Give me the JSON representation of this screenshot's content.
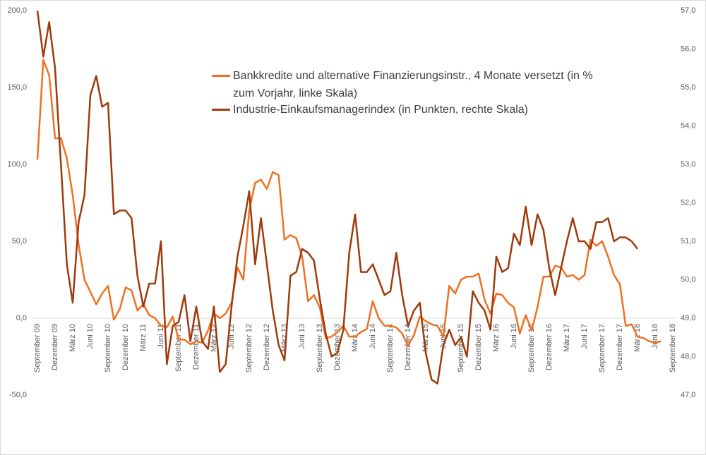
{
  "chart_data": {
    "type": "line",
    "categories": [
      "September 09",
      null,
      null,
      "Dezember 09",
      null,
      null,
      "März 10",
      null,
      null,
      "Juni 10",
      null,
      null,
      "September 10",
      null,
      null,
      "Dezember 10",
      null,
      null,
      "März 11",
      null,
      null,
      "Juni 11",
      null,
      null,
      "September 11",
      null,
      null,
      "Dezember 11",
      null,
      null,
      "März 12",
      null,
      null,
      "Juni 12",
      null,
      null,
      "September 12",
      null,
      null,
      "Dezember 12",
      null,
      null,
      "März 13",
      null,
      null,
      "Juni 13",
      null,
      null,
      "September 13",
      null,
      null,
      "Dezember 13",
      null,
      null,
      "März 14",
      null,
      null,
      "Juni 14",
      null,
      null,
      "September 14",
      null,
      null,
      "Dezember 14",
      null,
      null,
      "März 15",
      null,
      null,
      "Juni 15",
      null,
      null,
      "September 15",
      null,
      null,
      "Dezember 15",
      null,
      null,
      "März 16",
      null,
      null,
      "Juni 16",
      null,
      null,
      "September 16",
      null,
      null,
      "Dezember 16",
      null,
      null,
      "März 17",
      null,
      null,
      "Juni 17",
      null,
      null,
      "September 17",
      null,
      null,
      "Dezember 17",
      null,
      null,
      "März 18",
      null,
      null,
      "Juni 18",
      null,
      null,
      "September 18"
    ],
    "series": [
      {
        "name": "Bankkredite und alternative Finanzierungsinstr., 4 Monate versetzt (in % zum Vorjahr, linke Skala)",
        "color": "#f07022",
        "values": [
          103,
          168,
          158,
          117,
          117,
          104,
          80,
          48,
          25,
          17,
          9,
          16,
          21,
          -1,
          6,
          20,
          18,
          5,
          9,
          2,
          0,
          -5,
          -6,
          1,
          -14,
          -14,
          -17,
          -15,
          -16,
          -8,
          3,
          0,
          3,
          10,
          33,
          25,
          70,
          88,
          90,
          84,
          95,
          93,
          51,
          54,
          52,
          40,
          11,
          15,
          7,
          -13,
          -12,
          -9,
          -5,
          -12,
          -12,
          -9,
          -7,
          11,
          0,
          -5,
          -5,
          -6,
          -10,
          -18,
          -11,
          1,
          -2,
          -4,
          -5,
          -12,
          21,
          16,
          25,
          27,
          27,
          29,
          12,
          3,
          16,
          15,
          10,
          7,
          -10,
          2,
          -8,
          7,
          27,
          27,
          34,
          33,
          27,
          28,
          25,
          28,
          51,
          47,
          50,
          40,
          28,
          22,
          -5,
          -4,
          -12,
          -13,
          -15,
          -16,
          -15,
          null,
          null
        ]
      },
      {
        "name": "Industrie-Einkaufsmanagerindex (in Punkten, rechte Skala)",
        "color": "#9e3a0c",
        "axis": "y2",
        "values": [
          57.0,
          55.8,
          56.7,
          55.5,
          53.0,
          50.4,
          49.4,
          51.5,
          52.2,
          54.8,
          55.3,
          54.5,
          54.6,
          51.7,
          51.8,
          51.8,
          51.6,
          50.1,
          49.3,
          49.9,
          49.9,
          51.0,
          47.8,
          48.8,
          48.9,
          49.6,
          48.4,
          49.3,
          48.4,
          48.2,
          49.3,
          47.6,
          47.8,
          49.3,
          50.6,
          51.4,
          52.3,
          50.4,
          51.6,
          50.4,
          49.2,
          48.3,
          47.9,
          50.1,
          50.2,
          50.8,
          50.7,
          50.5,
          49.5,
          48.6,
          48.0,
          48.1,
          48.7,
          50.7,
          51.7,
          50.2,
          50.2,
          50.4,
          50.0,
          49.6,
          49.7,
          50.7,
          49.6,
          48.8,
          49.2,
          49.4,
          48.1,
          47.4,
          47.3,
          48.3,
          48.7,
          48.3,
          48.5,
          48.0,
          49.7,
          49.4,
          49.2,
          48.7,
          50.6,
          50.2,
          50.3,
          51.2,
          50.9,
          51.9,
          50.9,
          51.7,
          51.3,
          50.3,
          49.6,
          50.3,
          51.0,
          51.6,
          51.0,
          51.0,
          50.8,
          51.5,
          51.5,
          51.6,
          51.0,
          51.1,
          51.1,
          51.0,
          50.8,
          null,
          null,
          null,
          null,
          null,
          null
        ]
      }
    ],
    "ylim": [
      -50,
      200
    ],
    "yticks": [
      {
        "value": -50,
        "label": "-50,0"
      },
      {
        "value": 0,
        "label": "0,0"
      },
      {
        "value": 50,
        "label": "50,0"
      },
      {
        "value": 100,
        "label": "100,0"
      },
      {
        "value": 150,
        "label": "150,0"
      },
      {
        "value": 200,
        "label": "200,0"
      }
    ],
    "y2lim": [
      47,
      57
    ],
    "y2ticks": [
      {
        "value": 47,
        "label": "47,0"
      },
      {
        "value": 48,
        "label": "48,0"
      },
      {
        "value": 49,
        "label": "49,0"
      },
      {
        "value": 50,
        "label": "50,0"
      },
      {
        "value": 51,
        "label": "51,0"
      },
      {
        "value": 52,
        "label": "52,0"
      },
      {
        "value": 53,
        "label": "53,0"
      },
      {
        "value": 54,
        "label": "54,0"
      },
      {
        "value": 55,
        "label": "55,0"
      },
      {
        "value": 56,
        "label": "56,0"
      },
      {
        "value": 57,
        "label": "57,0"
      }
    ],
    "grid": false
  }
}
